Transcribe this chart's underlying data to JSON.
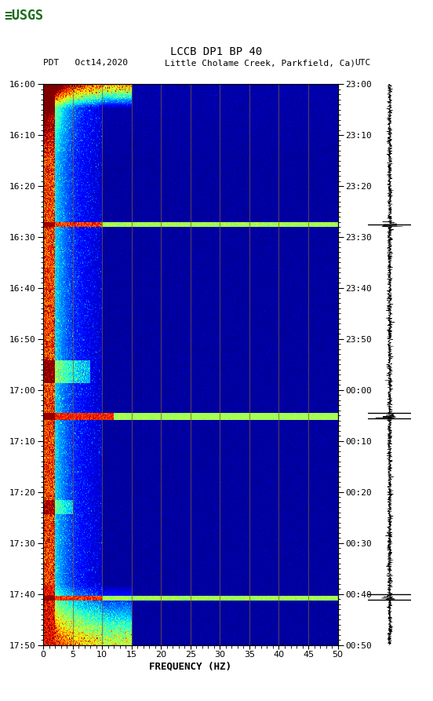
{
  "title_line1": "LCCB DP1 BP 40",
  "title_line2_left": "PDT   Oct14,2020",
  "title_line2_mid": "Little Cholame Creek, Parkfield, Ca)",
  "title_line2_right": "UTC",
  "xlabel": "FREQUENCY (HZ)",
  "freq_min": 0,
  "freq_max": 50,
  "time_left_labels": [
    "16:00",
    "16:10",
    "16:20",
    "16:30",
    "16:40",
    "16:50",
    "17:00",
    "17:10",
    "17:20",
    "17:30",
    "17:40",
    "17:50"
  ],
  "time_right_labels": [
    "23:00",
    "23:10",
    "23:20",
    "23:30",
    "23:40",
    "23:50",
    "00:00",
    "00:10",
    "00:20",
    "00:30",
    "00:40",
    "00:50"
  ],
  "n_time_steps": 600,
  "n_freq_bins": 500,
  "noise_band_rows": [
    150,
    355,
    549
  ],
  "vert_line_color": "#6B4A2A",
  "dark_blue": "#000080",
  "fig_bg": "#ffffff",
  "usgs_green": "#1a6b1a",
  "seismo_band_rows": [
    150,
    355,
    549
  ]
}
